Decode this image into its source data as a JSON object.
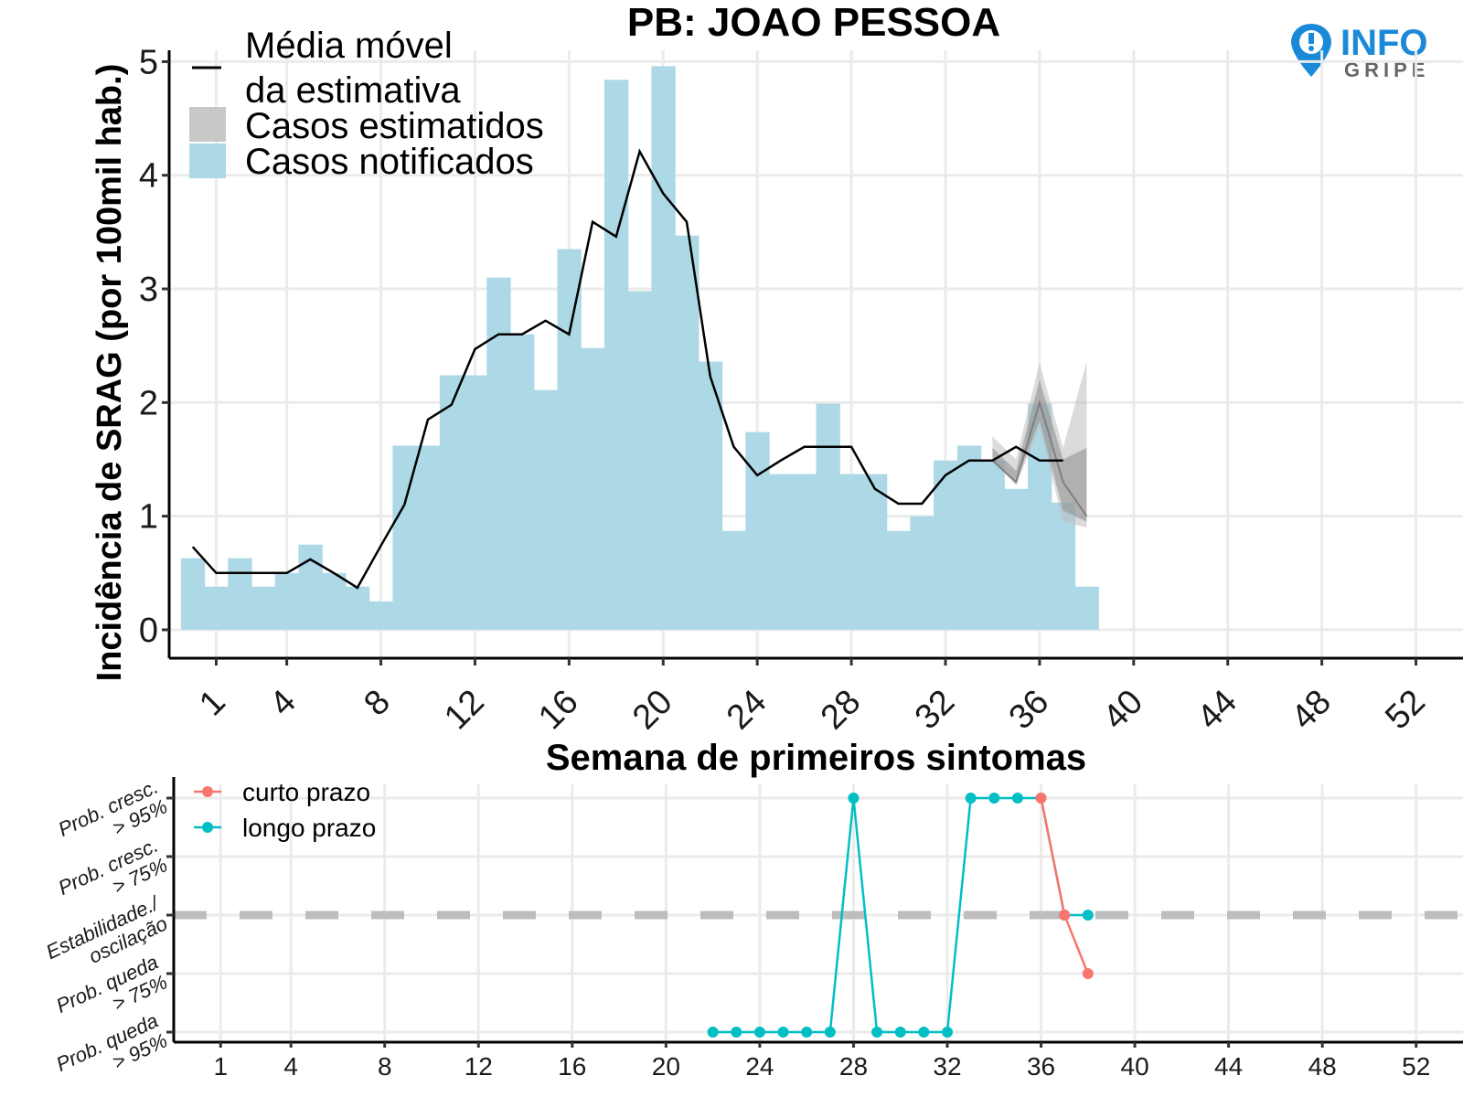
{
  "title": "PB: JOAO PESSOA",
  "logo": {
    "line1": "INFO",
    "line2": "GRIPE",
    "icon": "map-pin-icon"
  },
  "colors": {
    "notified": "#add8e6",
    "estimated": "#bdbdbd",
    "moving_avg": "#000000",
    "short_term": "#f8766d",
    "long_term": "#00bfc4",
    "grid": "#ebebeb",
    "stable_line": "#bdbdbd"
  },
  "chart_data": [
    {
      "type": "bar",
      "ylabel": "Incidência de SRAG (por 100mil hab.)",
      "xlabel": "Semana de primeiros sintomas",
      "xticks": [
        1,
        4,
        8,
        12,
        16,
        20,
        24,
        28,
        32,
        36,
        40,
        44,
        48,
        52
      ],
      "yticks": [
        0,
        1,
        2,
        3,
        4,
        5
      ],
      "xlim": [
        -1,
        54
      ],
      "ylim": [
        -0.25,
        5.1
      ],
      "grid": true,
      "legend_position": "top-left",
      "legend": [
        {
          "label": "Média móvel\nda estimativa",
          "line1": "Média móvel",
          "line2": "da estimativa",
          "kind": "line"
        },
        {
          "label": "Casos estimatidos",
          "kind": "ribbon"
        },
        {
          "label": "Casos notificados",
          "kind": "bar"
        }
      ],
      "weeks": [
        0,
        1,
        2,
        3,
        4,
        5,
        6,
        7,
        8,
        9,
        10,
        11,
        12,
        13,
        14,
        15,
        16,
        17,
        18,
        19,
        20,
        21,
        22,
        23,
        24,
        25,
        26,
        27,
        28,
        29,
        30,
        31,
        32,
        33,
        34,
        35,
        36,
        37,
        38
      ],
      "notified": [
        0.63,
        0.38,
        0.63,
        0.38,
        0.5,
        0.75,
        0.5,
        0.38,
        0.25,
        1.62,
        1.62,
        2.24,
        2.24,
        3.1,
        2.6,
        2.11,
        3.35,
        2.48,
        4.84,
        2.98,
        4.96,
        3.47,
        2.36,
        0.87,
        1.74,
        1.37,
        1.37,
        1.99,
        1.37,
        1.37,
        0.87,
        1.0,
        1.49,
        1.62,
        1.49,
        1.24,
        1.99,
        1.12,
        0.38
      ],
      "moving_average": {
        "weeks": [
          0,
          1,
          2,
          3,
          4,
          5,
          6,
          7,
          8,
          9,
          10,
          11,
          12,
          13,
          14,
          15,
          16,
          17,
          18,
          19,
          20,
          21,
          22,
          23,
          24,
          25,
          26,
          27,
          28,
          29,
          30,
          31,
          32,
          33,
          34,
          35,
          36,
          37
        ],
        "values": [
          0.73,
          0.5,
          0.5,
          0.5,
          0.5,
          0.62,
          0.5,
          0.37,
          0.74,
          1.1,
          1.85,
          1.98,
          2.47,
          2.6,
          2.6,
          2.72,
          2.6,
          3.59,
          3.46,
          4.21,
          3.84,
          3.59,
          2.23,
          1.61,
          1.36,
          1.49,
          1.61,
          1.61,
          1.61,
          1.24,
          1.11,
          1.11,
          1.36,
          1.49,
          1.49,
          1.61,
          1.49,
          1.49
        ]
      },
      "estimated": {
        "weeks": [
          34,
          35,
          36,
          37,
          38
        ],
        "median": [
          1.49,
          1.3,
          2.0,
          1.3,
          1.0
        ],
        "lower": [
          1.49,
          1.27,
          1.78,
          0.95,
          0.9
        ],
        "upper": [
          1.7,
          1.5,
          2.35,
          1.6,
          2.36
        ],
        "lower_inner": [
          1.49,
          1.3,
          1.84,
          1.05,
          0.95
        ],
        "upper_inner": [
          1.6,
          1.4,
          2.2,
          1.5,
          1.6
        ]
      }
    },
    {
      "type": "line",
      "xticks": [
        1,
        4,
        8,
        12,
        16,
        20,
        24,
        28,
        32,
        36,
        40,
        44,
        48,
        52
      ],
      "xlim": [
        -1,
        54
      ],
      "y_levels": [
        {
          "value": 2,
          "label_line1": "Prob. cresc.",
          "label_line2": "> 95%"
        },
        {
          "value": 1,
          "label_line1": "Prob. cresc.",
          "label_line2": "> 75%"
        },
        {
          "value": 0,
          "label_line1": "Estabilidade./",
          "label_line2": "oscilação"
        },
        {
          "value": -1,
          "label_line1": "Prob. queda",
          "label_line2": "> 75%"
        },
        {
          "value": -2,
          "label_line1": "Prob. queda",
          "label_line2": "> 95%"
        }
      ],
      "reference_line": 0,
      "series": [
        {
          "name": "curto prazo",
          "color": "#f8766d",
          "x": [
            36,
            37,
            38
          ],
          "y": [
            2,
            0,
            -1
          ]
        },
        {
          "name": "longo prazo",
          "color": "#00bfc4",
          "x": [
            22,
            23,
            24,
            25,
            26,
            27,
            28,
            29,
            30,
            31,
            32,
            33,
            34,
            35,
            36,
            37,
            38
          ],
          "y": [
            -2,
            -2,
            -2,
            -2,
            -2,
            -2,
            2,
            -2,
            -2,
            -2,
            -2,
            2,
            2,
            2,
            2,
            0,
            0
          ]
        }
      ]
    }
  ]
}
